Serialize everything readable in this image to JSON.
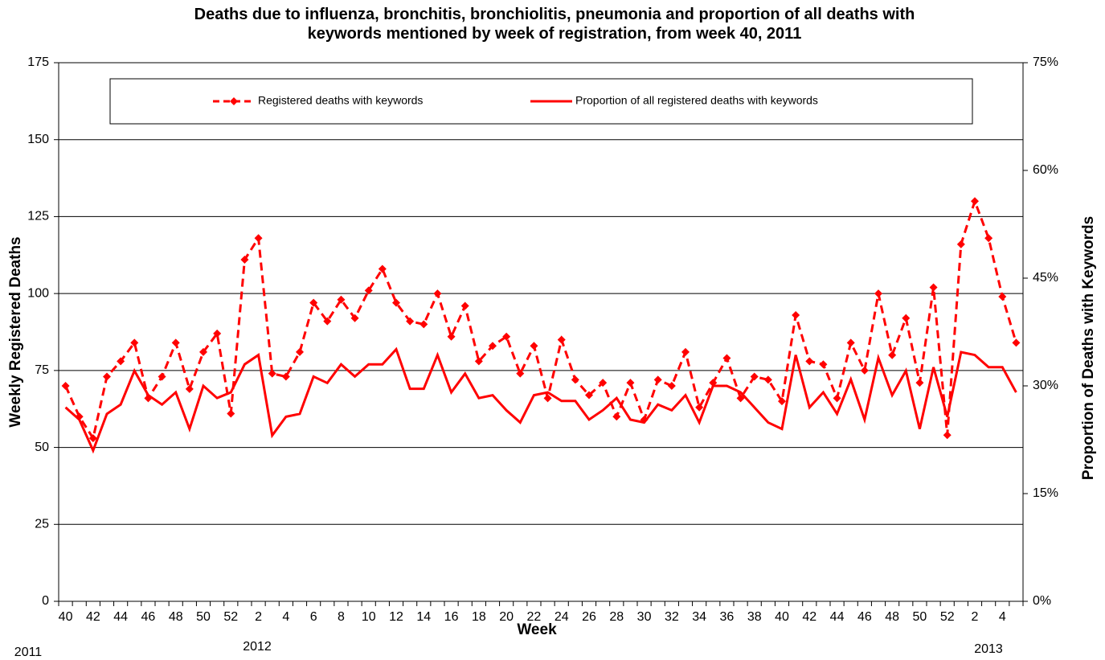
{
  "chart_data": {
    "type": "line",
    "title": "Deaths due to influenza, bronchitis, bronchiolitis, pneumonia and proportion of all deaths with keywords mentioned by week of registration, from week 40, 2011",
    "x_label": "Week",
    "y_label": "Weekly Registered Deaths",
    "y2_label": "Proportion of Deaths with Keywords",
    "annotations": [
      "2011",
      "2012",
      "2013"
    ],
    "categories": [
      "40",
      null,
      "42",
      null,
      "44",
      null,
      "46",
      null,
      "48",
      null,
      "50",
      null,
      "52",
      null,
      "2",
      null,
      "4",
      null,
      "6",
      null,
      "8",
      null,
      "10",
      null,
      "12",
      null,
      "14",
      null,
      "16",
      null,
      "18",
      null,
      "20",
      null,
      "22",
      null,
      "24",
      null,
      "26",
      null,
      "28",
      null,
      "30",
      null,
      "32",
      null,
      "34",
      null,
      "36",
      null,
      "38",
      null,
      "40",
      null,
      "42",
      null,
      "44",
      null,
      "46",
      null,
      "48",
      null,
      "50",
      null,
      "52",
      null,
      "2",
      null,
      "4",
      null
    ],
    "series": [
      {
        "name": "Registered deaths with keywords",
        "color": "#ff0000",
        "line_style": "dashed",
        "marker": "diamond",
        "values": [
          70,
          60,
          53,
          73,
          78,
          84,
          66,
          73,
          84,
          69,
          81,
          87,
          61,
          111,
          118,
          74,
          73,
          81,
          97,
          91,
          98,
          92,
          101,
          108,
          97,
          91,
          90,
          100,
          86,
          96,
          78,
          83,
          86,
          74,
          83,
          66,
          85,
          72,
          67,
          71,
          60,
          71,
          59,
          72,
          70,
          81,
          63,
          71,
          79,
          66,
          73,
          72,
          65,
          93,
          78,
          77,
          66,
          84,
          75,
          100,
          80,
          92,
          71,
          102,
          54,
          116,
          130,
          118,
          99,
          84
        ]
      },
      {
        "name": "Proportion of all registered deaths with keywords",
        "color": "#ff0000",
        "line_style": "solid",
        "marker": "none",
        "axis": "y2",
        "values": [
          27,
          25.3,
          21,
          26.1,
          27.4,
          32.1,
          28.7,
          27.4,
          29.1,
          24,
          30,
          28.3,
          29.1,
          33,
          34.3,
          23.1,
          25.7,
          26.1,
          31.3,
          30.4,
          33,
          31.3,
          33,
          33,
          35.1,
          29.6,
          29.6,
          34.3,
          29.1,
          31.7,
          28.3,
          28.7,
          26.6,
          24.9,
          28.7,
          29.1,
          27.9,
          27.9,
          25.3,
          26.6,
          28.3,
          25.3,
          24.9,
          27.4,
          26.6,
          28.7,
          24.9,
          30,
          30,
          29.1,
          27,
          24.9,
          24,
          34.3,
          27,
          29.1,
          26.1,
          30.9,
          25.3,
          33.9,
          28.7,
          32.1,
          24,
          32.6,
          25.7,
          34.7,
          34.3,
          32.6,
          32.6,
          29.1
        ]
      }
    ],
    "ylim": [
      0,
      175
    ],
    "yticks": [
      0,
      25,
      50,
      75,
      100,
      125,
      150,
      175
    ],
    "y2lim": [
      0,
      75
    ],
    "y2ticks": [
      {
        "value": 0,
        "label": "0%"
      },
      {
        "value": 15,
        "label": "15%"
      },
      {
        "value": 30,
        "label": "30%"
      },
      {
        "value": 45,
        "label": "45%"
      },
      {
        "value": 60,
        "label": "60%"
      },
      {
        "value": 75,
        "label": "75%"
      }
    ],
    "grid": true,
    "legend": "top"
  }
}
